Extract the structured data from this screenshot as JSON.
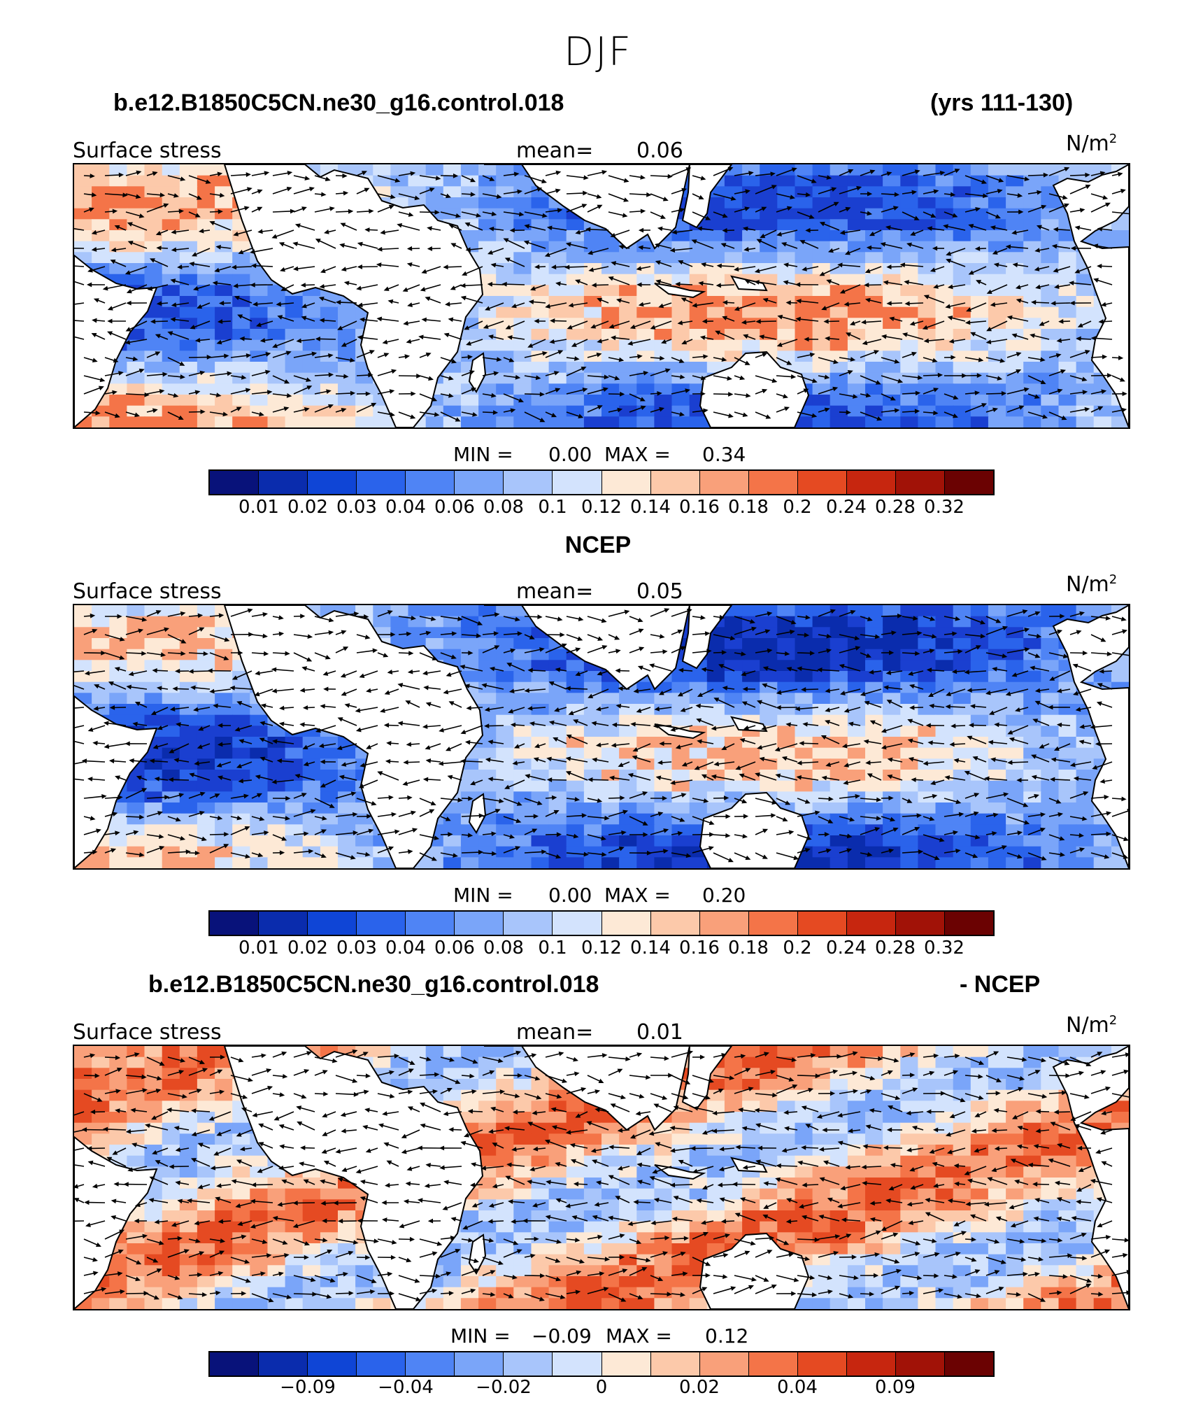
{
  "figure_title": "DJF",
  "colormap": [
    "#08127a",
    "#0a2cad",
    "#0f45d6",
    "#2a63eb",
    "#4f84f5",
    "#7aa5f9",
    "#a8c5fb",
    "#d3e3fd",
    "#fde9d6",
    "#fcc9aa",
    "#f9a07a",
    "#f47448",
    "#e54a22",
    "#c7260f",
    "#a11207",
    "#6b0202"
  ],
  "land_color": "#ffffff",
  "panels": [
    {
      "heading_left": "b.e12.B1850C5CN.ne30_g16.control.018",
      "heading_right": "(yrs 111-130)",
      "label": "Surface stress",
      "mean_label": "mean=",
      "mean_value": "0.06",
      "unit": "N/m",
      "unit_sup": "2",
      "min_label": "MIN =",
      "min_value": "0.00",
      "max_label": "MAX =",
      "max_value": "0.34",
      "colorbar_ticks": [
        "0.01",
        "0.02",
        "0.03",
        "0.04",
        "0.06",
        "0.08",
        "0.1",
        "0.12",
        "0.14",
        "0.16",
        "0.18",
        "0.2",
        "0.24",
        "0.28",
        "0.32"
      ]
    },
    {
      "heading_center": "NCEP",
      "label": "Surface stress",
      "mean_label": "mean=",
      "mean_value": "0.05",
      "unit": "N/m",
      "unit_sup": "2",
      "min_label": "MIN =",
      "min_value": "0.00",
      "max_label": "MAX =",
      "max_value": "0.20",
      "colorbar_ticks": [
        "0.01",
        "0.02",
        "0.03",
        "0.04",
        "0.06",
        "0.08",
        "0.1",
        "0.12",
        "0.14",
        "0.16",
        "0.18",
        "0.2",
        "0.24",
        "0.28",
        "0.32"
      ]
    },
    {
      "heading_left": "b.e12.B1850C5CN.ne30_g16.control.018",
      "heading_right": "- NCEP",
      "label": "Surface stress",
      "mean_label": "mean=",
      "mean_value": "0.01",
      "unit": "N/m",
      "unit_sup": "2",
      "min_label": "MIN =",
      "min_value": "−0.09",
      "max_label": "MAX =",
      "max_value": "0.12",
      "colorbar_ticks": [
        "−0.09",
        "−0.04",
        "−0.02",
        "0",
        "0.02",
        "0.04",
        "0.09"
      ]
    }
  ]
}
